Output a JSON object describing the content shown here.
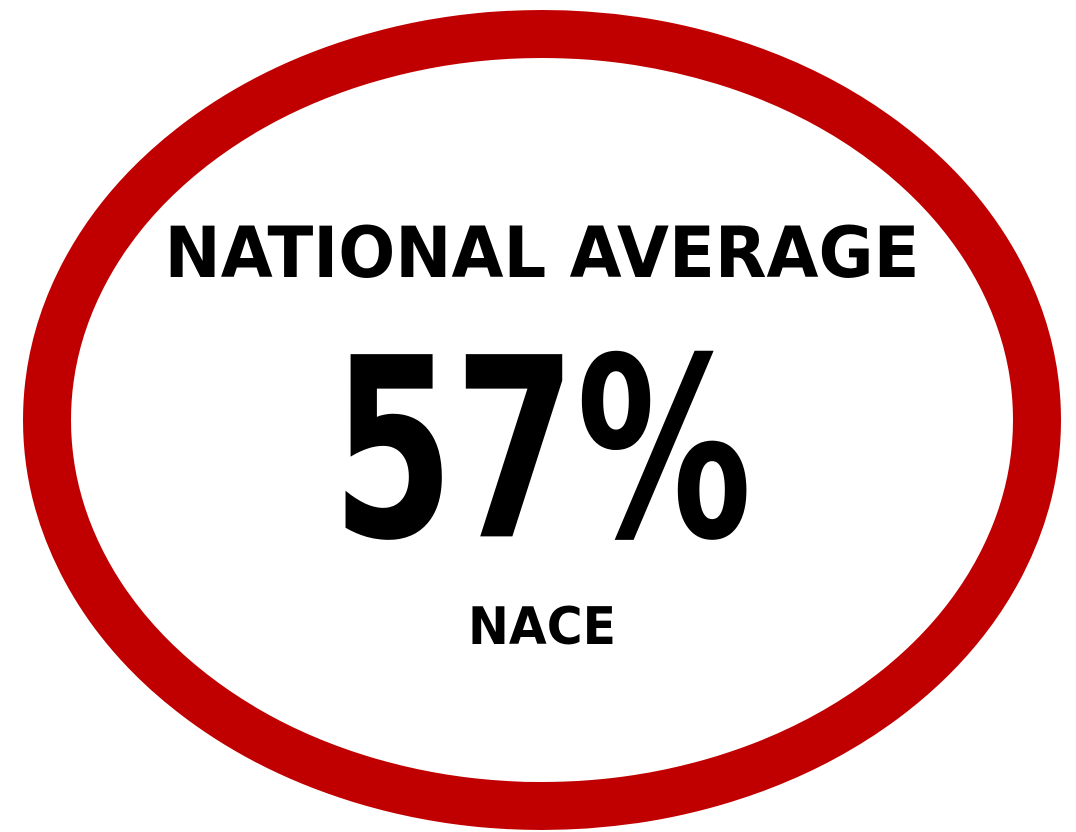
{
  "badge": {
    "heading": "NATIONAL AVERAGE",
    "value": "57%",
    "source": "NACE"
  }
}
